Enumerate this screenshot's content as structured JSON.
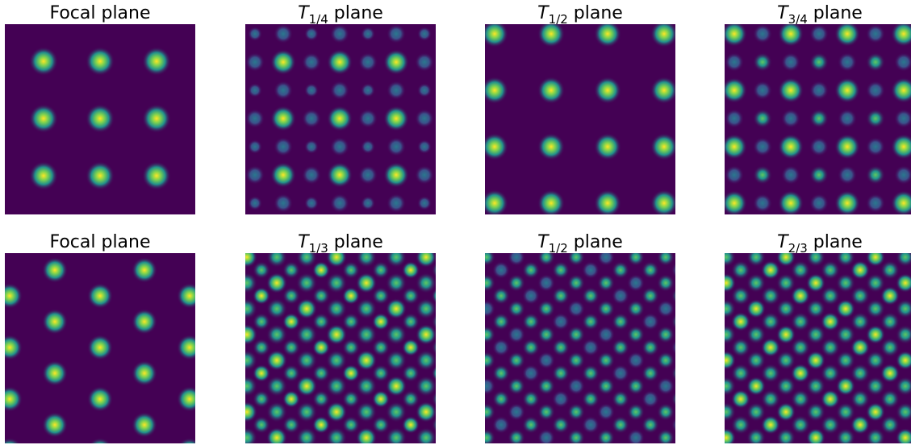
{
  "panels": [
    {
      "title": {
        "text": "Focal plane"
      }
    },
    {
      "title": {
        "symbol": "T",
        "subscript": "1/4",
        "text": "plane"
      }
    },
    {
      "title": {
        "symbol": "T",
        "subscript": "1/2",
        "text": "plane"
      }
    },
    {
      "title": {
        "symbol": "T",
        "subscript": "3/4",
        "text": "plane"
      }
    },
    {
      "title": {
        "text": "Focal plane"
      }
    },
    {
      "title": {
        "symbol": "T",
        "subscript": "1/3",
        "text": "plane"
      }
    },
    {
      "title": {
        "symbol": "T",
        "subscript": "1/2",
        "text": "plane"
      }
    },
    {
      "title": {
        "symbol": "T",
        "subscript": "2/3",
        "text": "plane"
      }
    }
  ]
}
